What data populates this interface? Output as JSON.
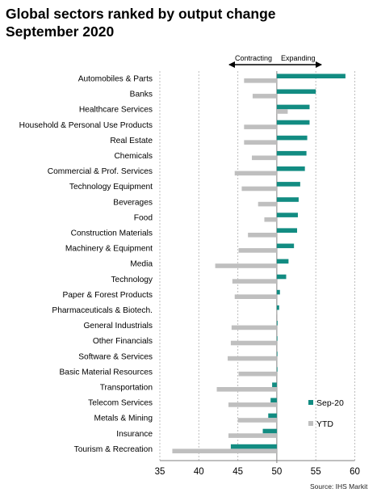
{
  "title_line1": "Global sectors ranked by output change",
  "title_line2": "September 2020",
  "source": "Source: IHS Markit",
  "annotations": {
    "contracting": "Contracting",
    "expanding": "Expanding"
  },
  "colors": {
    "sep20": "#128c82",
    "ytd": "#bfbfbf",
    "grid": "#bdbdbd",
    "axis": "#7f7f7f"
  },
  "chart_data": {
    "type": "bar",
    "orientation": "horizontal",
    "baseline": 50,
    "xlim": [
      35,
      60
    ],
    "xticks": [
      35,
      40,
      45,
      50,
      55,
      60
    ],
    "grid": true,
    "legend_position": "right",
    "categories": [
      "Automobiles & Parts",
      "Banks",
      "Healthcare Services",
      "Household & Personal Use Products",
      "Real Estate",
      "Chemicals",
      "Commercial & Prof. Services",
      "Technology Equipment",
      "Beverages",
      "Food",
      "Construction Materials",
      "Machinery & Equipment",
      "Media",
      "Technology",
      "Paper & Forest Products",
      "Pharmaceuticals & Biotech.",
      "General Industrials",
      "Other Financials",
      "Software & Services",
      "Basic Material Resources",
      "Transportation",
      "Telecom Services",
      "Metals & Mining",
      "Insurance",
      "Tourism & Recreation"
    ],
    "series": [
      {
        "name": "Sep-20",
        "color": "#128c82",
        "values": [
          58.8,
          55.0,
          54.2,
          54.2,
          53.9,
          53.8,
          53.6,
          53.0,
          52.8,
          52.7,
          52.6,
          52.2,
          51.5,
          51.2,
          50.4,
          50.3,
          50.1,
          50.0,
          50.0,
          50.0,
          49.4,
          49.2,
          48.9,
          48.2,
          44.1
        ]
      },
      {
        "name": "YTD",
        "color": "#bfbfbf",
        "values": [
          45.8,
          46.9,
          51.4,
          45.8,
          45.8,
          46.8,
          44.6,
          45.5,
          47.6,
          48.4,
          46.3,
          45.1,
          42.1,
          44.3,
          44.6,
          50.0,
          44.2,
          44.1,
          43.7,
          45.1,
          42.3,
          43.8,
          45.0,
          43.8,
          36.6
        ]
      }
    ]
  }
}
